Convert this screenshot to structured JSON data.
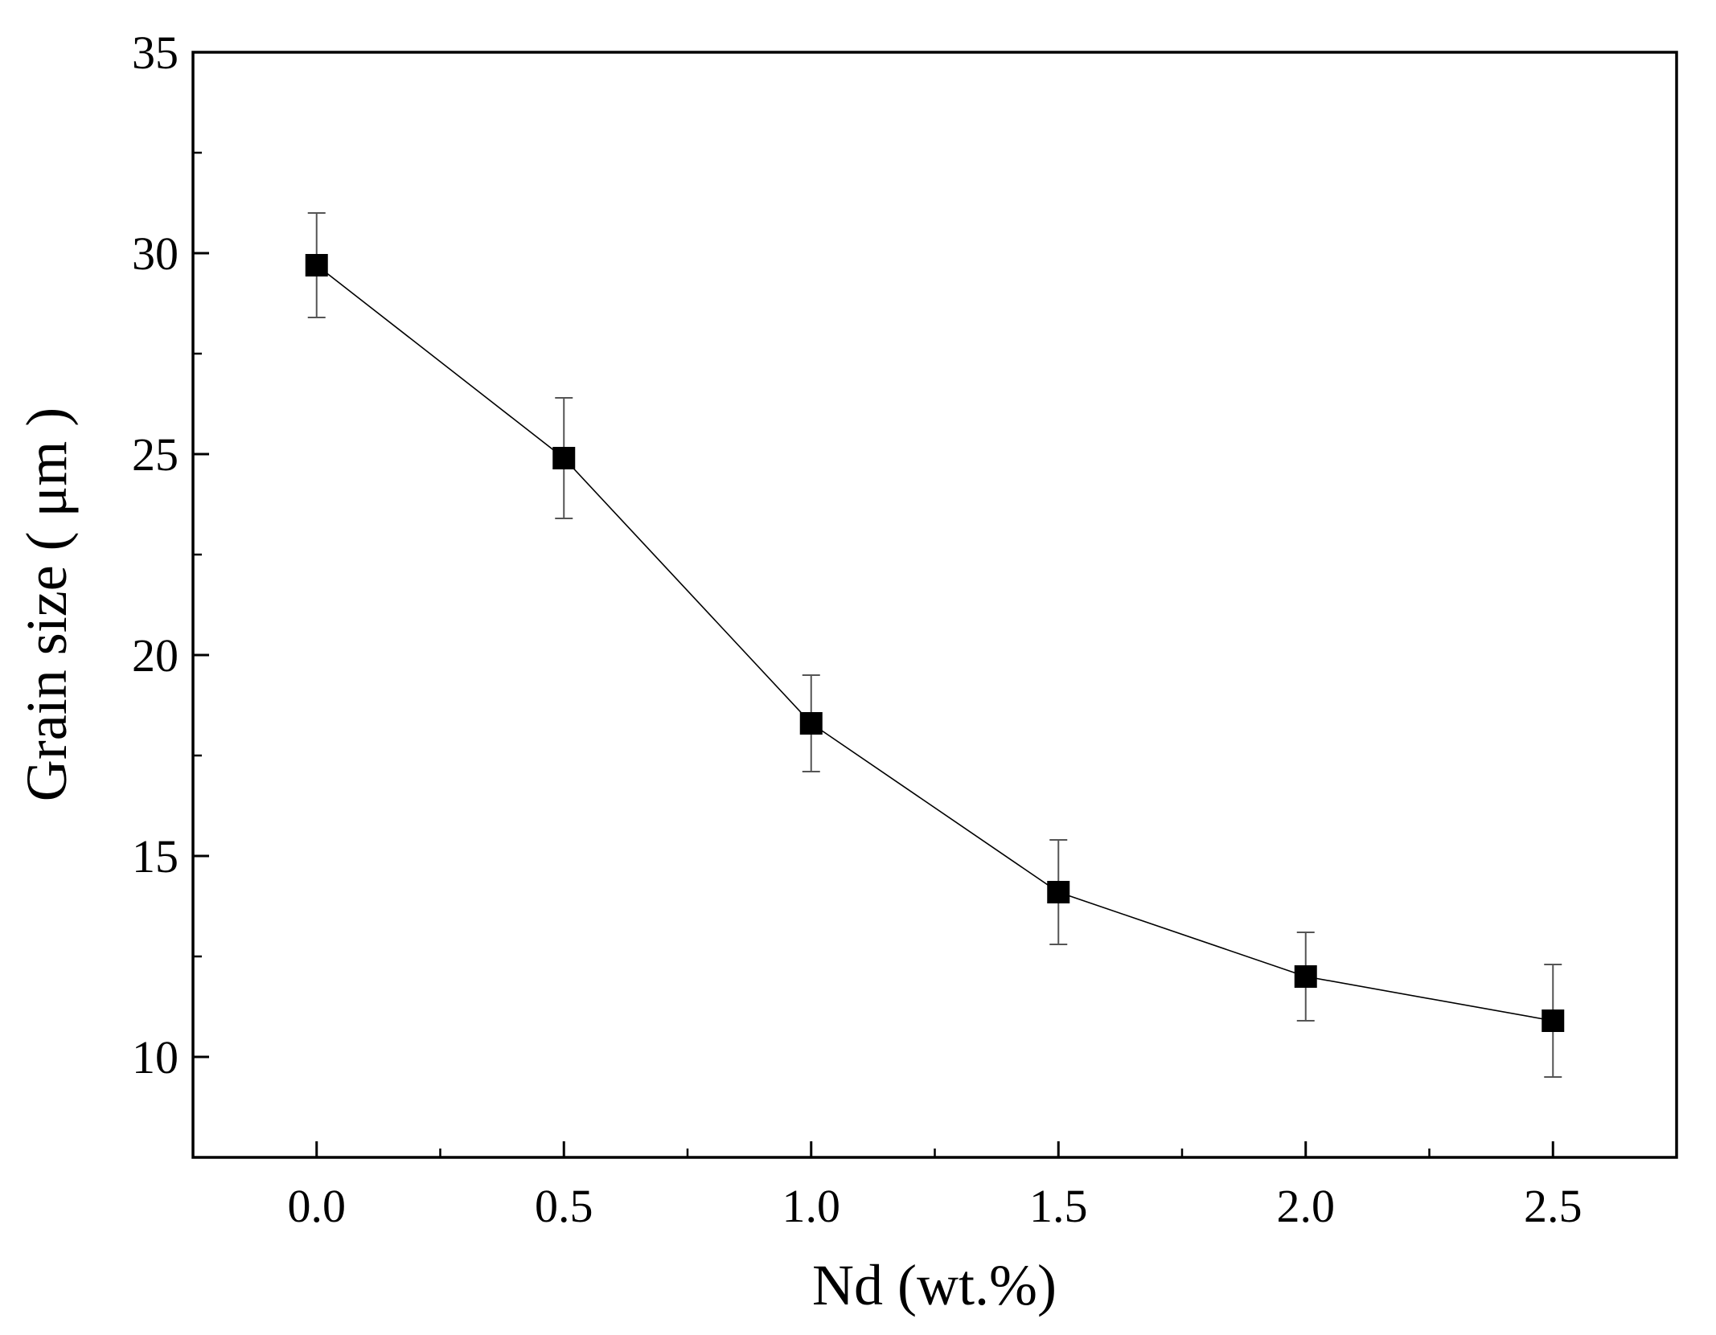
{
  "chart_data": {
    "type": "line",
    "title": "",
    "xlabel": "Nd (wt.%)",
    "ylabel": "Grain size ( μm )",
    "xlim": [
      -0.25,
      2.75
    ],
    "ylim": [
      7.5,
      35
    ],
    "x_ticks": [
      "0.0",
      "0.5",
      "1.0",
      "1.5",
      "2.0",
      "2.5"
    ],
    "y_ticks": [
      "10",
      "15",
      "20",
      "25",
      "30",
      "35"
    ],
    "grid": false,
    "legend": "none",
    "marker": "filled-square",
    "line_color": "#000000",
    "series": [
      {
        "x": [
          0.0,
          0.5,
          1.0,
          1.5,
          2.0,
          2.5
        ],
        "y": [
          29.7,
          24.9,
          18.3,
          14.1,
          12.0,
          10.9
        ],
        "error_upper": [
          31.0,
          26.4,
          19.5,
          15.4,
          13.1,
          12.3
        ],
        "error_lower": [
          28.4,
          23.4,
          17.1,
          12.8,
          10.9,
          9.5
        ]
      }
    ]
  }
}
